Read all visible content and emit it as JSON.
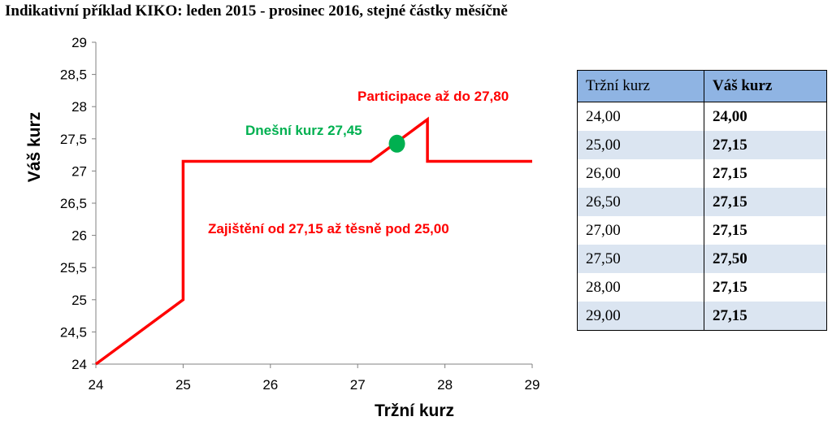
{
  "title": "Indikativní příklad KIKO: leden 2015 - prosinec 2016, stejné částky měsíčně",
  "chart_data": {
    "type": "line",
    "xlabel": "Tržní kurz",
    "ylabel": "Váš kurz",
    "xlim": [
      24,
      29
    ],
    "ylim": [
      24,
      29
    ],
    "xticks": [
      "24",
      "25",
      "26",
      "27",
      "28",
      "29"
    ],
    "yticks": [
      "24",
      "24,5",
      "25",
      "25,5",
      "26",
      "26,5",
      "27",
      "27,5",
      "28",
      "28,5",
      "29"
    ],
    "grid": false,
    "series": [
      {
        "color": "#ff0000",
        "x": [
          24.0,
          25.0,
          25.0,
          27.15,
          27.8,
          27.8,
          29.0
        ],
        "y": [
          24.0,
          25.0,
          27.15,
          27.15,
          27.8,
          27.15,
          27.15
        ]
      }
    ],
    "marker": {
      "x": 27.45,
      "y": 27.5,
      "color": "#00b050"
    },
    "annotations": [
      {
        "text": "Participace až do 27,80",
        "color": "#ff0000"
      },
      {
        "text": "Dnešní kurz 27,45",
        "color": "#00b050"
      },
      {
        "text": "Zajištění od 27,15 až těsně pod 25,00",
        "color": "#ff0000"
      }
    ]
  },
  "table": {
    "headers": [
      "Tržní kurz",
      "Váš kurz"
    ],
    "rows": [
      [
        "24,00",
        "24,00"
      ],
      [
        "25,00",
        "27,15"
      ],
      [
        "26,00",
        "27,15"
      ],
      [
        "26,50",
        "27,15"
      ],
      [
        "27,00",
        "27,15"
      ],
      [
        "27,50",
        "27,50"
      ],
      [
        "28,00",
        "27,15"
      ],
      [
        "29,00",
        "27,15"
      ]
    ],
    "header_color": "#8fb4e3",
    "stripe_color": "#dbe5f1"
  }
}
